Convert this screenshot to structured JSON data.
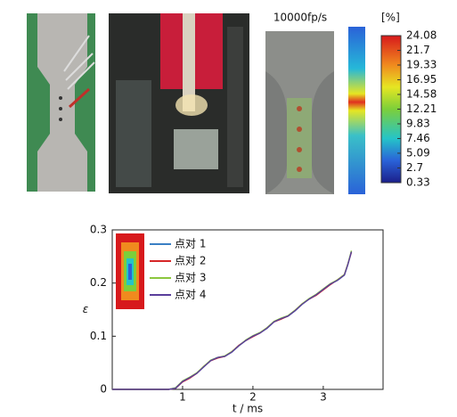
{
  "photo_caption": "10000fp/s",
  "colorbar": {
    "label": "[%]",
    "ticks": [
      24.08,
      21.7,
      19.33,
      16.95,
      14.58,
      12.21,
      9.83,
      7.46,
      5.09,
      2.7,
      0.33
    ]
  },
  "chart_data": {
    "type": "line",
    "xlabel": "t / ms",
    "ylabel": "ε",
    "x": [
      0,
      0.5,
      0.8,
      0.9,
      1.0,
      1.1,
      1.2,
      1.3,
      1.4,
      1.5,
      1.6,
      1.7,
      1.8,
      1.9,
      2.0,
      2.1,
      2.2,
      2.3,
      2.4,
      2.5,
      2.6,
      2.7,
      2.8,
      2.9,
      3.0,
      3.1,
      3.2,
      3.3,
      3.35,
      3.4
    ],
    "series": [
      {
        "name": "点对 1",
        "color": "#3a7fc4",
        "values": [
          0,
          0,
          0,
          0.003,
          0.015,
          0.022,
          0.03,
          0.042,
          0.055,
          0.06,
          0.062,
          0.07,
          0.082,
          0.092,
          0.1,
          0.106,
          0.115,
          0.127,
          0.133,
          0.138,
          0.148,
          0.16,
          0.17,
          0.178,
          0.188,
          0.198,
          0.205,
          0.215,
          0.235,
          0.26
        ]
      },
      {
        "name": "点对 2",
        "color": "#d62728",
        "values": [
          0,
          0,
          0,
          0.002,
          0.014,
          0.021,
          0.03,
          0.043,
          0.054,
          0.059,
          0.062,
          0.071,
          0.083,
          0.092,
          0.099,
          0.106,
          0.116,
          0.127,
          0.132,
          0.138,
          0.149,
          0.161,
          0.17,
          0.177,
          0.187,
          0.197,
          0.206,
          0.216,
          0.236,
          0.258
        ]
      },
      {
        "name": "点对 3",
        "color": "#8cc63f",
        "values": [
          0,
          0,
          0,
          0.003,
          0.016,
          0.023,
          0.031,
          0.043,
          0.055,
          0.06,
          0.063,
          0.071,
          0.082,
          0.093,
          0.101,
          0.107,
          0.116,
          0.128,
          0.134,
          0.139,
          0.149,
          0.161,
          0.171,
          0.179,
          0.189,
          0.199,
          0.206,
          0.216,
          0.236,
          0.261
        ]
      },
      {
        "name": "点对 4",
        "color": "#5a3e9b",
        "values": [
          0,
          0,
          0,
          0.002,
          0.015,
          0.022,
          0.03,
          0.042,
          0.054,
          0.06,
          0.062,
          0.07,
          0.082,
          0.092,
          0.1,
          0.106,
          0.115,
          0.127,
          0.133,
          0.138,
          0.148,
          0.16,
          0.17,
          0.178,
          0.188,
          0.198,
          0.205,
          0.215,
          0.235,
          0.259
        ]
      }
    ],
    "xlim": [
      0,
      3.85
    ],
    "ylim": [
      0,
      0.3
    ],
    "xticks": [
      1,
      2,
      3
    ],
    "yticks": [
      0,
      0.1,
      0.2,
      0.3
    ],
    "legend": "upper left"
  }
}
